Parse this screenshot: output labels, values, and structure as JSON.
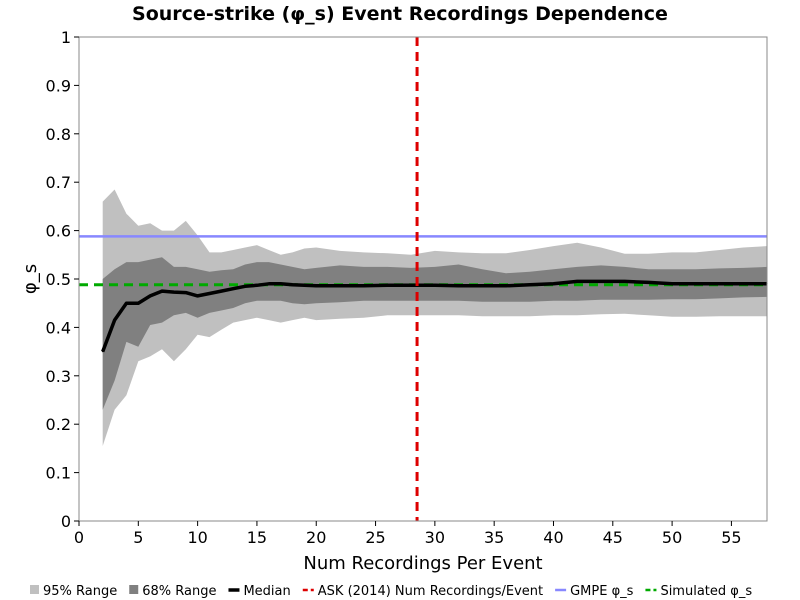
{
  "chart_data": {
    "type": "line",
    "title": "Source-strike (φ_s) Event Recordings Dependence",
    "xlabel": "Num Recordings Per Event",
    "ylabel": "φ_s",
    "xlim": [
      0,
      58
    ],
    "ylim": [
      0,
      1
    ],
    "xticks": [
      "0",
      "5",
      "10",
      "15",
      "20",
      "25",
      "30",
      "35",
      "40",
      "45",
      "50",
      "55"
    ],
    "yticks": [
      "0",
      "0.1",
      "0.2",
      "0.3",
      "0.4",
      "0.5",
      "0.6",
      "0.7",
      "0.8",
      "0.9",
      "1"
    ],
    "grid": false,
    "legend_position": "bottom",
    "x": [
      2,
      3,
      4,
      5,
      6,
      7,
      8,
      9,
      10,
      11,
      12,
      13,
      14,
      15,
      16,
      17,
      18,
      19,
      20,
      22,
      24,
      26,
      28,
      30,
      32,
      34,
      36,
      38,
      40,
      42,
      44,
      46,
      48,
      50,
      52,
      54,
      56,
      58
    ],
    "series": [
      {
        "name": "95% Range",
        "kind": "band",
        "color": "#c0c0c0",
        "lower": [
          0.155,
          0.23,
          0.26,
          0.33,
          0.34,
          0.355,
          0.33,
          0.355,
          0.385,
          0.38,
          0.395,
          0.41,
          0.415,
          0.42,
          0.415,
          0.41,
          0.415,
          0.42,
          0.415,
          0.418,
          0.42,
          0.425,
          0.425,
          0.425,
          0.425,
          0.423,
          0.423,
          0.423,
          0.425,
          0.425,
          0.427,
          0.428,
          0.425,
          0.422,
          0.422,
          0.423,
          0.423,
          0.423
        ],
        "upper": [
          0.66,
          0.685,
          0.635,
          0.61,
          0.615,
          0.6,
          0.6,
          0.62,
          0.59,
          0.555,
          0.555,
          0.56,
          0.565,
          0.57,
          0.56,
          0.55,
          0.555,
          0.563,
          0.565,
          0.558,
          0.555,
          0.553,
          0.55,
          0.558,
          0.555,
          0.553,
          0.553,
          0.56,
          0.568,
          0.575,
          0.565,
          0.552,
          0.552,
          0.555,
          0.555,
          0.56,
          0.565,
          0.568
        ]
      },
      {
        "name": "68% Range",
        "kind": "band",
        "color": "#808080",
        "lower": [
          0.23,
          0.29,
          0.37,
          0.36,
          0.405,
          0.41,
          0.425,
          0.43,
          0.42,
          0.43,
          0.435,
          0.44,
          0.45,
          0.455,
          0.455,
          0.455,
          0.45,
          0.448,
          0.45,
          0.452,
          0.455,
          0.455,
          0.455,
          0.455,
          0.455,
          0.453,
          0.453,
          0.453,
          0.455,
          0.455,
          0.457,
          0.457,
          0.457,
          0.458,
          0.458,
          0.46,
          0.462,
          0.463
        ],
        "upper": [
          0.5,
          0.52,
          0.535,
          0.535,
          0.54,
          0.545,
          0.525,
          0.525,
          0.52,
          0.515,
          0.518,
          0.52,
          0.53,
          0.535,
          0.535,
          0.53,
          0.525,
          0.52,
          0.523,
          0.528,
          0.525,
          0.525,
          0.523,
          0.525,
          0.53,
          0.52,
          0.512,
          0.515,
          0.52,
          0.525,
          0.528,
          0.525,
          0.52,
          0.52,
          0.52,
          0.522,
          0.523,
          0.525
        ]
      },
      {
        "name": "Median",
        "kind": "line",
        "color": "#000000",
        "values": [
          0.35,
          0.415,
          0.45,
          0.45,
          0.465,
          0.475,
          0.473,
          0.472,
          0.465,
          0.47,
          0.475,
          0.48,
          0.485,
          0.487,
          0.49,
          0.49,
          0.488,
          0.487,
          0.486,
          0.486,
          0.486,
          0.487,
          0.487,
          0.487,
          0.486,
          0.486,
          0.486,
          0.488,
          0.49,
          0.495,
          0.495,
          0.495,
          0.493,
          0.49,
          0.49,
          0.49,
          0.49,
          0.49
        ]
      }
    ],
    "reference_lines": [
      {
        "name": "ASK (2014) Num Recordings/Event",
        "orientation": "vertical",
        "value": 28.5,
        "color": "#dd0000",
        "style": "dashed"
      },
      {
        "name": "GMPE φ_s",
        "orientation": "horizontal",
        "value": 0.588,
        "color": "#8888ff",
        "style": "solid"
      },
      {
        "name": "Simulated φ_s",
        "orientation": "horizontal",
        "value": 0.488,
        "color": "#00aa00",
        "style": "dashed"
      }
    ],
    "legend": [
      {
        "label": "95% Range",
        "swatch": "box",
        "color": "#c0c0c0"
      },
      {
        "label": "68% Range",
        "swatch": "box",
        "color": "#808080"
      },
      {
        "label": "Median",
        "swatch": "line",
        "color": "#000000"
      },
      {
        "label": "ASK (2014) Num Recordings/Event",
        "swatch": "dash",
        "color": "#dd0000"
      },
      {
        "label": "GMPE φ_s",
        "swatch": "line-thin",
        "color": "#8888ff"
      },
      {
        "label": "Simulated φ_s",
        "swatch": "dash",
        "color": "#00aa00"
      }
    ]
  }
}
